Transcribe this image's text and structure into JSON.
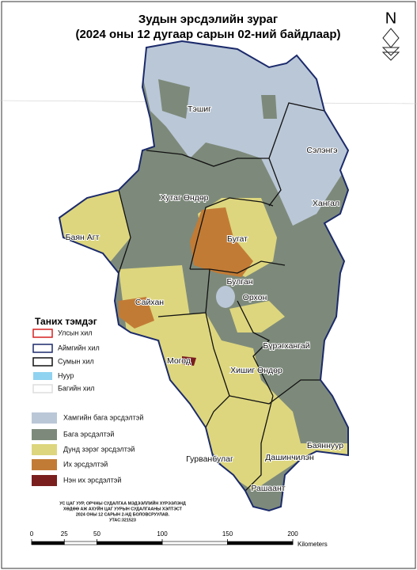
{
  "title": {
    "line1": "Зудын эрсдэлийн зураг",
    "line2": "(2024 оны 12 дугаар сарын 02-ний байдлаар)"
  },
  "north": "N",
  "regions": [
    {
      "label": "Тэшиг"
    },
    {
      "label": "Сэлэнгэ"
    },
    {
      "label": "Хутаг Өндөр"
    },
    {
      "label": "Хангал"
    },
    {
      "label": "Баян Агт"
    },
    {
      "label": "Бугат"
    },
    {
      "label": "Булган"
    },
    {
      "label": "Орхон"
    },
    {
      "label": "Сайхан"
    },
    {
      "label": "Бүрэгхангай"
    },
    {
      "label": "Могод"
    },
    {
      "label": "Хишиг Өндөр"
    },
    {
      "label": "Гурванбулаг"
    },
    {
      "label": "Дашинчилэн"
    },
    {
      "label": "Баяннуур"
    },
    {
      "label": "Рашаант"
    }
  ],
  "legend": {
    "title": "Таних тэмдэг",
    "boundaries": [
      {
        "label": "Улсын хил",
        "color": "#d62020"
      },
      {
        "label": "Аймгийн хил",
        "color": "#1b2a6b"
      },
      {
        "label": "Сумын хил",
        "color": "#111111"
      },
      {
        "label": "Нуур",
        "color": "#8fd3f0"
      },
      {
        "label": "Багийн хил",
        "color": "#dddddd"
      }
    ],
    "risk": [
      {
        "label": "Хамгийн бага эрсдэлтэй",
        "color": "#bac7d7"
      },
      {
        "label": "Бага эрсдэлтэй",
        "color": "#7d8a7b"
      },
      {
        "label": "Дунд зэрэг эрсдэлтэй",
        "color": "#ddd67e"
      },
      {
        "label": "Их эрсдэлтэй",
        "color": "#c27b35"
      },
      {
        "label": "Нэн их эрсдэлтэй",
        "color": "#7a1e1e"
      }
    ]
  },
  "credits": [
    "УС ЦАГ УУР, ОРЧНЫ СУДАЛГАА МЭДЭЭЛЛИЙН ХҮРЭЭЛЭНД",
    "ХӨДӨӨ АЖ АХУЙН ЦАГ УУРЫН СУДАЛГААНЫ ХЭЛТЭСТ",
    "2024 ОНЫ 12 САРЫН 2-НД БОЛОВСРУУЛАВ.",
    "УТАС:321523"
  ],
  "scale": {
    "ticks": [
      0,
      25,
      50,
      100,
      150,
      200
    ],
    "unit": "Kilometers"
  }
}
